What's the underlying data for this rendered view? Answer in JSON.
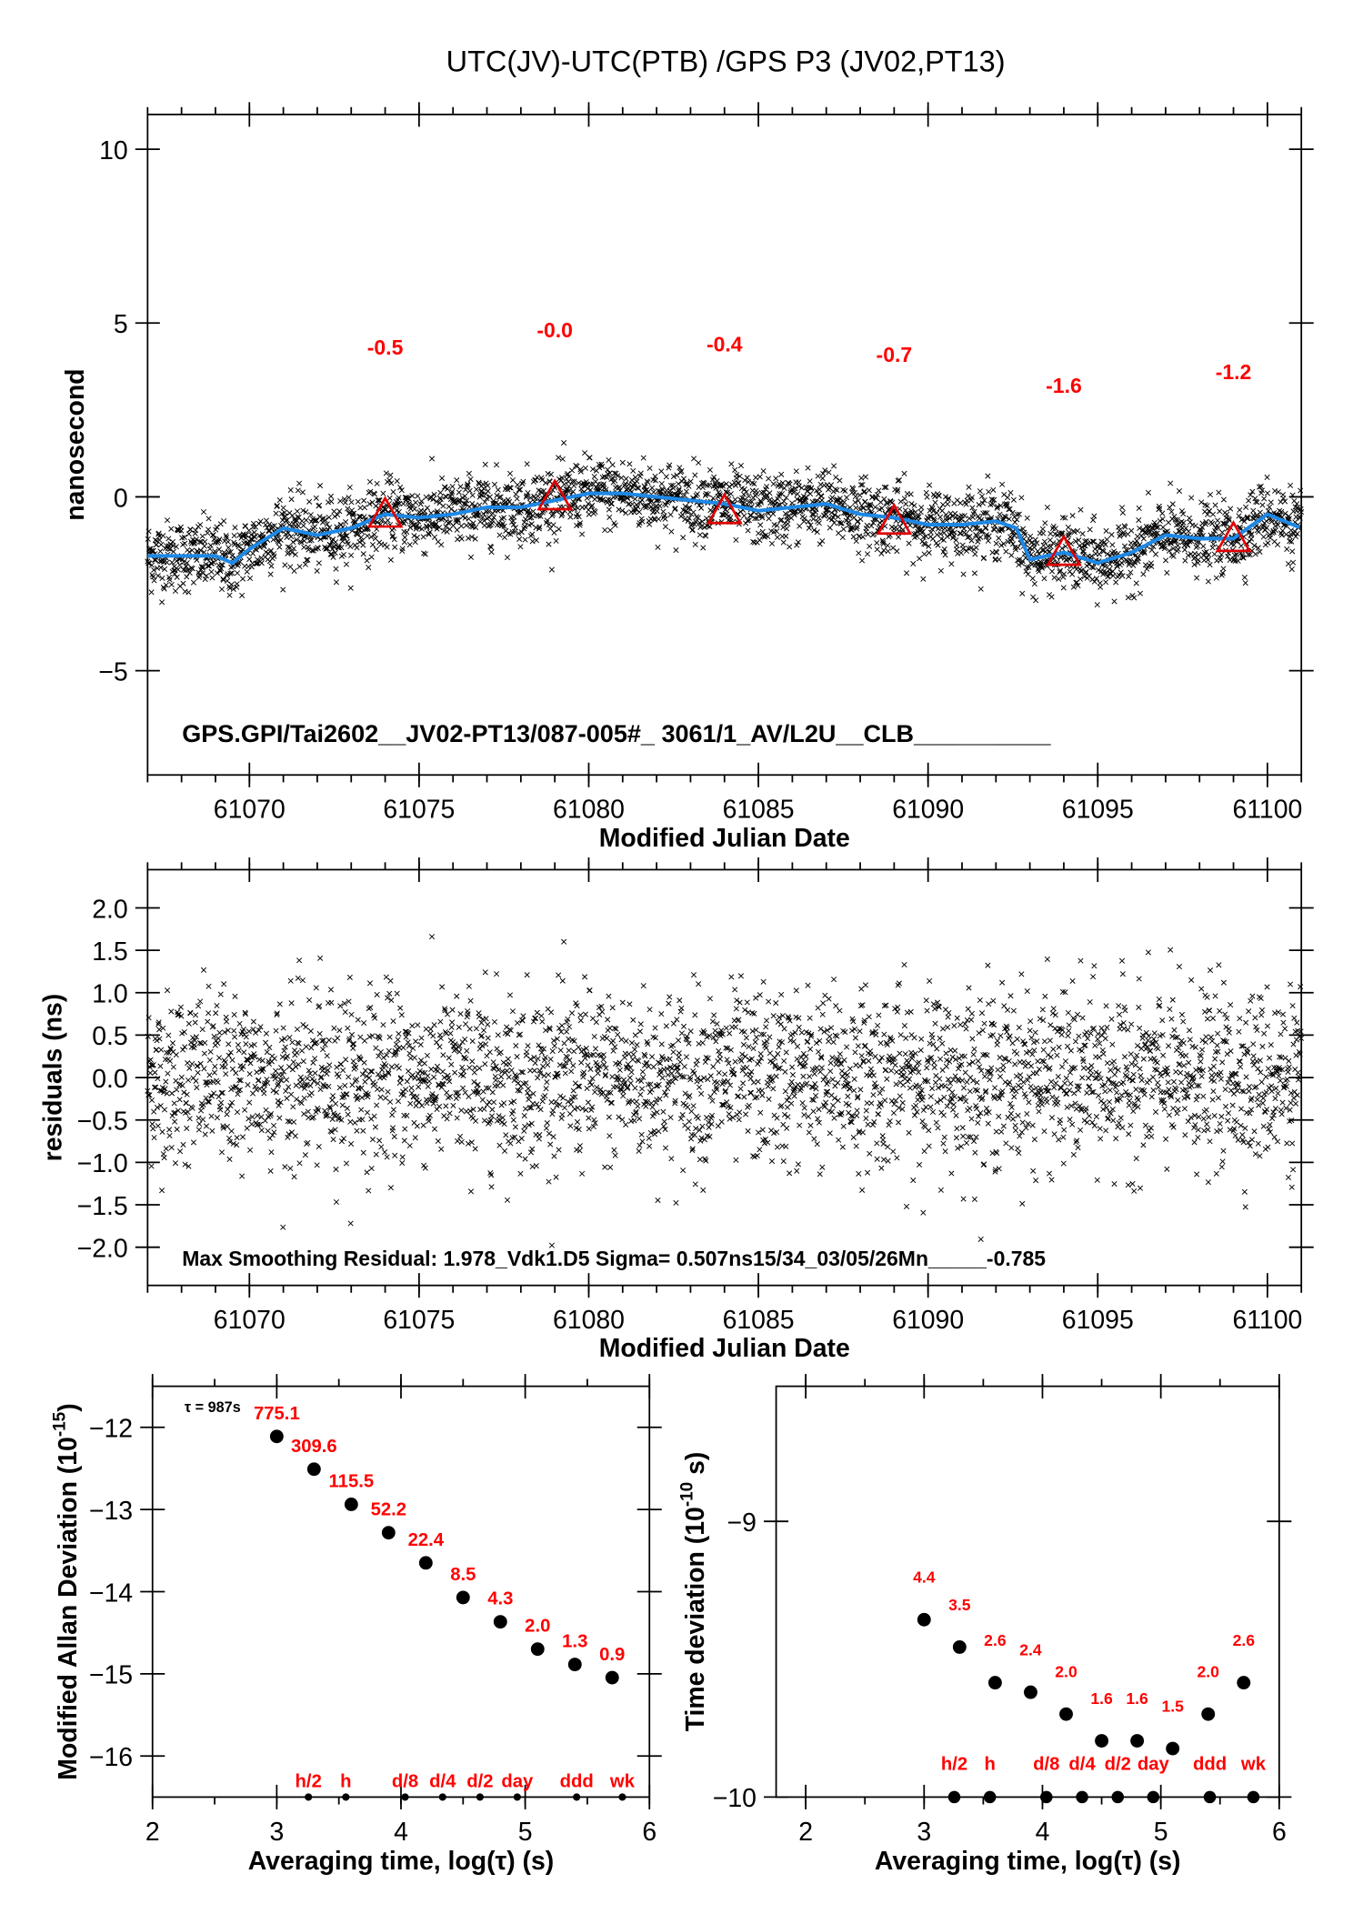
{
  "title": "UTC(JV)-UTC(PTB)  /GPS  P3  (JV02,PT13)",
  "colors": {
    "smooth": "#1e88e5",
    "marker": "#e00000",
    "label": "#ff0000",
    "points": "#000000"
  },
  "chart_data": [
    {
      "type": "scatter",
      "name": "time-difference",
      "xlabel": "Modified Julian Date",
      "ylabel": "nanosecond",
      "xlim": [
        61067,
        61101
      ],
      "ylim": [
        -8,
        11
      ],
      "xticks": [
        61070,
        61075,
        61080,
        61085,
        61090,
        61095,
        61100
      ],
      "yticks": [
        10,
        5,
        0,
        -5
      ],
      "ytick_labels": [
        "10",
        "5",
        "0",
        "−5"
      ],
      "annotation": "GPS.GPI/Tai2602__JV02-PT13/087-005#_  3061/1_AV/L2U__CLB__________",
      "smoothed_curve": {
        "x": [
          61067,
          61068,
          61069,
          61069.5,
          61070,
          61071,
          61072,
          61073,
          61074,
          61075,
          61076,
          61077,
          61078,
          61079,
          61080,
          61081,
          61082,
          61083,
          61084,
          61085,
          61086,
          61087,
          61088,
          61089,
          61090,
          61091,
          61092,
          61092.6,
          61093,
          61094,
          61095,
          61096,
          61097,
          61098,
          61099,
          61100,
          61101
        ],
        "y": [
          -1.7,
          -1.7,
          -1.7,
          -1.9,
          -1.5,
          -0.9,
          -1.1,
          -0.9,
          -0.5,
          -0.6,
          -0.5,
          -0.3,
          -0.3,
          -0.1,
          0.1,
          0.1,
          0.0,
          -0.1,
          -0.2,
          -0.4,
          -0.3,
          -0.2,
          -0.5,
          -0.6,
          -0.8,
          -0.8,
          -0.7,
          -0.9,
          -1.8,
          -1.6,
          -1.9,
          -1.6,
          -1.1,
          -1.2,
          -1.2,
          -0.5,
          -0.9
        ]
      },
      "noise_sigma_ns": 0.507,
      "daily_means": [
        {
          "mjd": 61074,
          "value": -0.5,
          "label": "-0.5"
        },
        {
          "mjd": 61079,
          "value": 0.0,
          "label": "-0.0"
        },
        {
          "mjd": 61084,
          "value": -0.4,
          "label": "-0.4"
        },
        {
          "mjd": 61089,
          "value": -0.7,
          "label": "-0.7"
        },
        {
          "mjd": 61094,
          "value": -1.6,
          "label": "-1.6"
        },
        {
          "mjd": 61099,
          "value": -1.2,
          "label": "-1.2"
        }
      ]
    },
    {
      "type": "scatter",
      "name": "residuals",
      "xlabel": "Modified Julian Date",
      "ylabel": "residuals (ns)",
      "xlim": [
        61067,
        61101
      ],
      "ylim": [
        -2.45,
        2.45
      ],
      "xticks": [
        61070,
        61075,
        61080,
        61085,
        61090,
        61095,
        61100
      ],
      "yticks": [
        2.0,
        1.5,
        1.0,
        0.5,
        0.0,
        -0.5,
        -1.0,
        -1.5,
        -2.0
      ],
      "ytick_labels": [
        "2.0",
        "1.5",
        "1.0",
        "0.5",
        "0.0",
        "−0.5",
        "−1.0",
        "−1.5",
        "−2.0"
      ],
      "annotation": "Max Smoothing Residual: 1.978_Vdk1.D5  Sigma= 0.507ns15/34_03/05/26Mn_____-0.785"
    },
    {
      "type": "scatter",
      "name": "modified-allan-deviation",
      "xlabel": "Averaging time, log(τ) (s)",
      "ylabel": "Modified Allan Deviation (10",
      "ylabel_exp": "-15",
      "ylabel_end": ")",
      "xlim": [
        2,
        6
      ],
      "ylim": [
        -16.5,
        -11.5
      ],
      "xticks": [
        2,
        3,
        4,
        5,
        6
      ],
      "yticks": [
        -12,
        -13,
        -14,
        -15,
        -16
      ],
      "ytick_labels": [
        "−12",
        "−13",
        "−14",
        "−15",
        "−16"
      ],
      "tau_note": "τ = 987s",
      "x": [
        3.0,
        3.3,
        3.6,
        3.9,
        4.2,
        4.5,
        4.8,
        5.1,
        5.4,
        5.7
      ],
      "values": [
        775.1,
        309.6,
        115.5,
        52.2,
        22.4,
        8.5,
        4.3,
        2.0,
        1.3,
        0.9
      ],
      "labels": [
        "775.1",
        "309.6",
        "115.5",
        "52.2",
        "22.4",
        "8.5",
        "4.3",
        "2.0",
        "1.3",
        "0.9"
      ],
      "scale_exp": -15,
      "markers": [
        {
          "x": 3.255,
          "label": "h/2"
        },
        {
          "x": 3.556,
          "label": "h"
        },
        {
          "x": 4.033,
          "label": "d/8"
        },
        {
          "x": 4.335,
          "label": "d/4"
        },
        {
          "x": 4.636,
          "label": "d/2"
        },
        {
          "x": 4.936,
          "label": "day"
        },
        {
          "x": 5.414,
          "label": "ddd"
        },
        {
          "x": 5.782,
          "label": "wk"
        }
      ]
    },
    {
      "type": "scatter",
      "name": "time-deviation",
      "xlabel": "Averaging time, log(τ) (s)",
      "ylabel": "Time deviation (10",
      "ylabel_exp": "-10",
      "ylabel_end": " s)",
      "xlim": [
        1.75,
        6
      ],
      "ylim": [
        -10,
        -8.51
      ],
      "xticks": [
        2,
        3,
        4,
        5,
        6
      ],
      "yticks": [
        -9,
        -10
      ],
      "ytick_labels": [
        "−9",
        "−10"
      ],
      "x": [
        3.0,
        3.3,
        3.6,
        3.9,
        4.2,
        4.5,
        4.8,
        5.1,
        5.4,
        5.7
      ],
      "values": [
        4.4,
        3.5,
        2.6,
        2.4,
        2.0,
        1.6,
        1.6,
        1.5,
        2.0,
        2.6
      ],
      "labels": [
        "4.4",
        "3.5",
        "2.6",
        "2.4",
        "2.0",
        "1.6",
        "1.6",
        "1.5",
        "2.0",
        "2.6"
      ],
      "scale_exp": -10,
      "markers": [
        {
          "x": 3.255,
          "label": "h/2"
        },
        {
          "x": 3.556,
          "label": "h"
        },
        {
          "x": 4.033,
          "label": "d/8"
        },
        {
          "x": 4.335,
          "label": "d/4"
        },
        {
          "x": 4.636,
          "label": "d/2"
        },
        {
          "x": 4.936,
          "label": "day"
        },
        {
          "x": 5.414,
          "label": "ddd"
        },
        {
          "x": 5.782,
          "label": "wk"
        }
      ]
    }
  ]
}
